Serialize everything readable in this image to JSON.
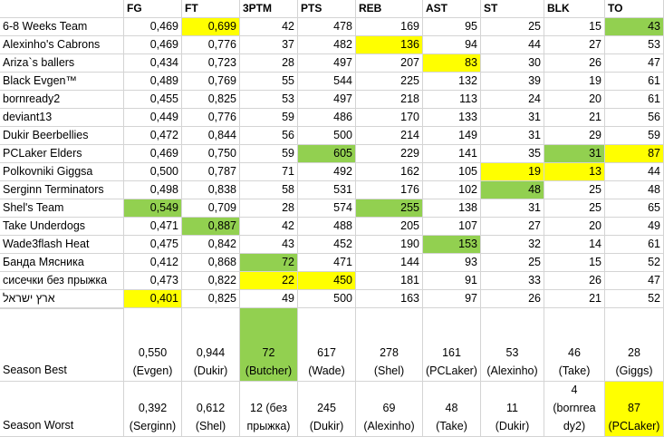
{
  "colors": {
    "green": "#92d050",
    "yellow": "#ffff00",
    "white": "#ffffff",
    "grid": "#d4d4d4"
  },
  "columns": [
    "",
    "FG",
    "FT",
    "3PTM",
    "PTS",
    "REB",
    "AST",
    "ST",
    "BLK",
    "TO"
  ],
  "rows": [
    {
      "team": "6-8 Weeks Team",
      "values": [
        "0,469",
        "0,699",
        "42",
        "478",
        "169",
        "95",
        "25",
        "15",
        "43"
      ],
      "highlights": [
        "",
        "yellow",
        "",
        "",
        "",
        "",
        "",
        "",
        "green"
      ]
    },
    {
      "team": "Alexinho's Cabrons",
      "values": [
        "0,469",
        "0,776",
        "37",
        "482",
        "136",
        "94",
        "44",
        "27",
        "53"
      ],
      "highlights": [
        "",
        "",
        "",
        "",
        "yellow",
        "",
        "",
        "",
        ""
      ]
    },
    {
      "team": "Ariza`s ballers",
      "values": [
        "0,434",
        "0,723",
        "28",
        "497",
        "207",
        "83",
        "30",
        "26",
        "47"
      ],
      "highlights": [
        "",
        "",
        "",
        "",
        "",
        "yellow",
        "",
        "",
        ""
      ]
    },
    {
      "team": "Black Evgen™",
      "values": [
        "0,489",
        "0,769",
        "55",
        "544",
        "225",
        "132",
        "39",
        "19",
        "61"
      ],
      "highlights": [
        "",
        "",
        "",
        "",
        "",
        "",
        "",
        "",
        ""
      ]
    },
    {
      "team": "bornready2",
      "values": [
        "0,455",
        "0,825",
        "53",
        "497",
        "218",
        "113",
        "24",
        "20",
        "61"
      ],
      "highlights": [
        "",
        "",
        "",
        "",
        "",
        "",
        "",
        "",
        ""
      ]
    },
    {
      "team": "deviant13",
      "values": [
        "0,449",
        "0,776",
        "59",
        "486",
        "170",
        "133",
        "31",
        "21",
        "56"
      ],
      "highlights": [
        "",
        "",
        "",
        "",
        "",
        "",
        "",
        "",
        ""
      ]
    },
    {
      "team": "Dukir Beerbellies",
      "values": [
        "0,472",
        "0,844",
        "56",
        "500",
        "214",
        "149",
        "31",
        "29",
        "59"
      ],
      "highlights": [
        "",
        "",
        "",
        "",
        "",
        "",
        "",
        "",
        ""
      ]
    },
    {
      "team": "PCLaker Elders",
      "values": [
        "0,469",
        "0,750",
        "59",
        "605",
        "229",
        "141",
        "35",
        "31",
        "87"
      ],
      "highlights": [
        "",
        "",
        "",
        "green",
        "",
        "",
        "",
        "green",
        "yellow"
      ]
    },
    {
      "team": "Polkovniki Giggsa",
      "values": [
        "0,500",
        "0,787",
        "71",
        "492",
        "162",
        "105",
        "19",
        "13",
        "44"
      ],
      "highlights": [
        "",
        "",
        "",
        "",
        "",
        "",
        "yellow",
        "yellow",
        ""
      ]
    },
    {
      "team": "Serginn Terminators",
      "values": [
        "0,498",
        "0,838",
        "58",
        "531",
        "176",
        "102",
        "48",
        "25",
        "48"
      ],
      "highlights": [
        "",
        "",
        "",
        "",
        "",
        "",
        "green",
        "",
        ""
      ]
    },
    {
      "team": "Shel's Team",
      "values": [
        "0,549",
        "0,709",
        "28",
        "574",
        "255",
        "138",
        "31",
        "25",
        "65"
      ],
      "highlights": [
        "green",
        "",
        "",
        "",
        "green",
        "",
        "",
        "",
        ""
      ]
    },
    {
      "team": "Take Underdogs",
      "values": [
        "0,471",
        "0,887",
        "42",
        "488",
        "205",
        "107",
        "27",
        "20",
        "49"
      ],
      "highlights": [
        "",
        "green",
        "",
        "",
        "",
        "",
        "",
        "",
        ""
      ]
    },
    {
      "team": "Wade3flash Heat",
      "values": [
        "0,475",
        "0,842",
        "43",
        "452",
        "190",
        "153",
        "32",
        "14",
        "61"
      ],
      "highlights": [
        "",
        "",
        "",
        "",
        "",
        "green",
        "",
        "",
        ""
      ]
    },
    {
      "team": "Банда Мясника",
      "values": [
        "0,412",
        "0,868",
        "72",
        "471",
        "144",
        "93",
        "25",
        "15",
        "52"
      ],
      "highlights": [
        "",
        "",
        "green",
        "",
        "",
        "",
        "",
        "",
        ""
      ]
    },
    {
      "team": "сисечки без прыжка",
      "values": [
        "0,473",
        "0,822",
        "22",
        "450",
        "181",
        "91",
        "33",
        "26",
        "47"
      ],
      "highlights": [
        "",
        "",
        "yellow",
        "yellow",
        "",
        "",
        "",
        "",
        ""
      ]
    },
    {
      "team": "ארץ ישראל",
      "values": [
        "0,401",
        "0,825",
        "49",
        "500",
        "163",
        "97",
        "26",
        "21",
        "52"
      ],
      "highlights": [
        "yellow",
        "",
        "",
        "",
        "",
        "",
        "",
        "",
        ""
      ]
    }
  ],
  "summary": [
    {
      "label": "Season Best",
      "cells": [
        {
          "lines": [
            "0,550",
            "(Evgen)"
          ],
          "highlight": ""
        },
        {
          "lines": [
            "0,944",
            "(Dukir)"
          ],
          "highlight": ""
        },
        {
          "lines": [
            "72",
            "(Butcher)"
          ],
          "highlight": "green"
        },
        {
          "lines": [
            "617",
            "(Wade)"
          ],
          "highlight": ""
        },
        {
          "lines": [
            "278",
            "(Shel)"
          ],
          "highlight": ""
        },
        {
          "lines": [
            "161",
            "(PCLaker)"
          ],
          "highlight": ""
        },
        {
          "lines": [
            "53",
            "(Alexinho)"
          ],
          "highlight": ""
        },
        {
          "lines": [
            "46",
            "(Take)"
          ],
          "highlight": ""
        },
        {
          "lines": [
            "28",
            "(Giggs)"
          ],
          "highlight": ""
        }
      ]
    },
    {
      "label": "Season Worst",
      "cells": [
        {
          "lines": [
            "0,392",
            "(Serginn)"
          ],
          "highlight": ""
        },
        {
          "lines": [
            "0,612",
            "(Shel)"
          ],
          "highlight": ""
        },
        {
          "lines": [
            "12 (без",
            "прыжка)"
          ],
          "highlight": ""
        },
        {
          "lines": [
            "245",
            "(Dukir)"
          ],
          "highlight": ""
        },
        {
          "lines": [
            "69",
            "(Alexinho)"
          ],
          "highlight": ""
        },
        {
          "lines": [
            "48",
            "(Take)"
          ],
          "highlight": ""
        },
        {
          "lines": [
            "11",
            "(Dukir)"
          ],
          "highlight": ""
        },
        {
          "lines": [
            "4",
            "(bornrea",
            "dy2)"
          ],
          "highlight": ""
        },
        {
          "lines": [
            "87",
            "(PCLaker)"
          ],
          "highlight": "yellow"
        }
      ]
    }
  ]
}
